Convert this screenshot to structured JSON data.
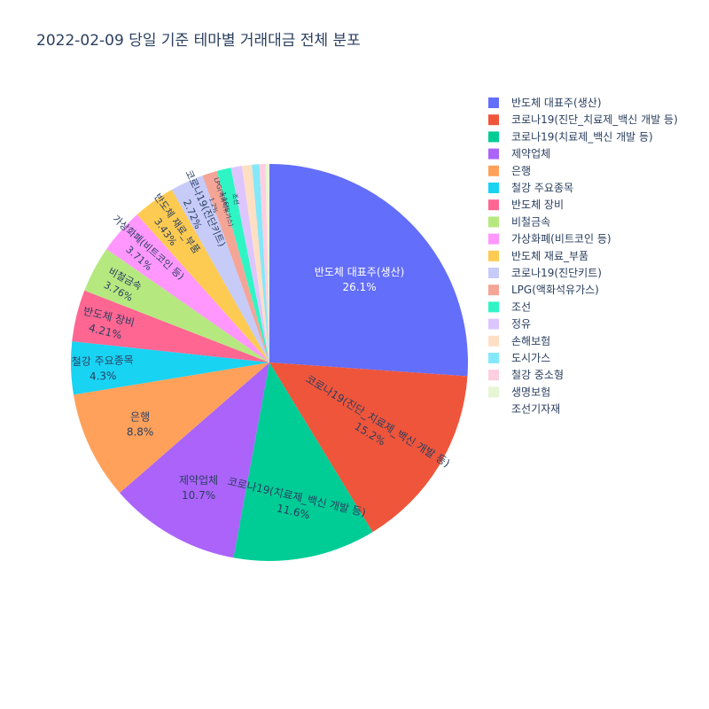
{
  "chart_data": {
    "type": "pie",
    "title": "2022-02-09 당일 기준 테마별 거래대금 전체 분포",
    "slices": [
      {
        "label": "반도체 대표주(생산)",
        "value": 26.1,
        "text": "26.1%",
        "color": "#636efa"
      },
      {
        "label": "코로나19(진단_치료제_백신 개발 등)",
        "value": 15.2,
        "text": "15.2%",
        "color": "#ef553b"
      },
      {
        "label": "코로나19(치료제_백신 개발 등)",
        "value": 11.6,
        "text": "11.6%",
        "color": "#00cc96"
      },
      {
        "label": "제약업체",
        "value": 10.7,
        "text": "10.7%",
        "color": "#ab63fa"
      },
      {
        "label": "은행",
        "value": 8.8,
        "text": "8.8%",
        "color": "#ffa15a"
      },
      {
        "label": "철강 주요종목",
        "value": 4.3,
        "text": "4.3%",
        "color": "#19d3f3"
      },
      {
        "label": "반도체 장비",
        "value": 4.21,
        "text": "4.21%",
        "color": "#ff6692"
      },
      {
        "label": "비철금속",
        "value": 3.76,
        "text": "3.76%",
        "color": "#b6e880"
      },
      {
        "label": "가상화폐(비트코인 등)",
        "value": 3.71,
        "text": "3.71%",
        "color": "#ff97ff"
      },
      {
        "label": "반도체 재료_부품",
        "value": 3.43,
        "text": "3.43%",
        "color": "#fecb52"
      },
      {
        "label": "코로나19(진단키트)",
        "value": 2.72,
        "text": "2.72%",
        "color": "#c6cbf8"
      },
      {
        "label": "LPG(액화석유가스)",
        "value": 1.2,
        "text": "1.2%",
        "color": "#f4a596"
      },
      {
        "label": "조선",
        "value": 1.16,
        "text": "1.16%",
        "color": "#2ff5c5"
      },
      {
        "label": "정유",
        "value": 0.9,
        "text": "",
        "color": "#ddc6fd"
      },
      {
        "label": "손해보험",
        "value": 0.8,
        "text": "",
        "color": "#ffdfc4"
      },
      {
        "label": "도시가스",
        "value": 0.6,
        "text": "",
        "color": "#83e8f9"
      },
      {
        "label": "철강 중소형",
        "value": 0.5,
        "text": "",
        "color": "#ffcee0"
      },
      {
        "label": "생명보험",
        "value": 0.3,
        "text": "",
        "color": "#e6f5d3"
      },
      {
        "label": "조선기자재",
        "value": 0.01,
        "text": "",
        "color": "#ffffff"
      }
    ],
    "legend_position": "right"
  }
}
